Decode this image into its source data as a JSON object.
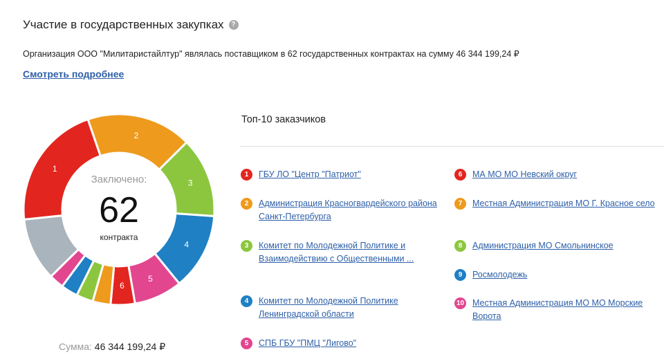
{
  "header": {
    "title": "Участие в государственных закупках",
    "help_icon": "?"
  },
  "summary": {
    "text": "Организация ООО \"Милитаристайлтур\" являлась поставщиком в 62 государственных контрактах на сумму 46 344 199,24 ₽",
    "more_link": "Смотреть подробнее"
  },
  "donut": {
    "caption": "Заключено:",
    "number": "62",
    "unit": "контракта",
    "sum_label": "Сумма:",
    "sum_value": "46 344 199,24 ₽"
  },
  "top": {
    "title": "Топ-10 заказчиков"
  },
  "chart_data": {
    "type": "pie",
    "title": "",
    "labels": [
      "1",
      "2",
      "3",
      "4",
      "5",
      "6",
      "",
      "",
      "",
      "",
      ""
    ],
    "values": [
      12,
      10,
      7.6,
      7.3,
      4.6,
      2.3,
      1.7,
      1.6,
      1.6,
      1.4,
      6.0
    ],
    "colors": [
      "#e3251f",
      "#ee9a1d",
      "#8cc63f",
      "#1f80c4",
      "#e2468f",
      "#e3251f",
      "#ee9a1d",
      "#8cc63f",
      "#1f80c4",
      "#e2468f",
      "#aab4bc"
    ]
  },
  "customers": [
    {
      "num": "1",
      "name": "ГБУ ЛО \"Центр \"Патриот\"",
      "color": "#e3251f"
    },
    {
      "num": "2",
      "name": "Администрация Красногвардейского района Санкт-Петербурга",
      "color": "#ee9a1d"
    },
    {
      "num": "3",
      "name": "Комитет по Молодежной Политике и Взаимодействию с Общественными ...",
      "color": "#8cc63f"
    },
    {
      "num": "4",
      "name": "Комитет по Молодежной Политике Ленинградской области",
      "color": "#1f80c4"
    },
    {
      "num": "5",
      "name": "СПБ ГБУ \"ПМЦ \"Лигово\"",
      "color": "#e2468f"
    },
    {
      "num": "6",
      "name": "МА МО МО Невский округ",
      "color": "#e3251f"
    },
    {
      "num": "7",
      "name": "Местная Администрация МО Г. Красное село",
      "color": "#ee9a1d"
    },
    {
      "num": "8",
      "name": "Администрация МО Смольнинское",
      "color": "#8cc63f"
    },
    {
      "num": "9",
      "name": "Росмолодежь",
      "color": "#1f80c4"
    },
    {
      "num": "10",
      "name": "Местная Администрация МО МО Морские Ворота",
      "color": "#e2468f"
    }
  ]
}
